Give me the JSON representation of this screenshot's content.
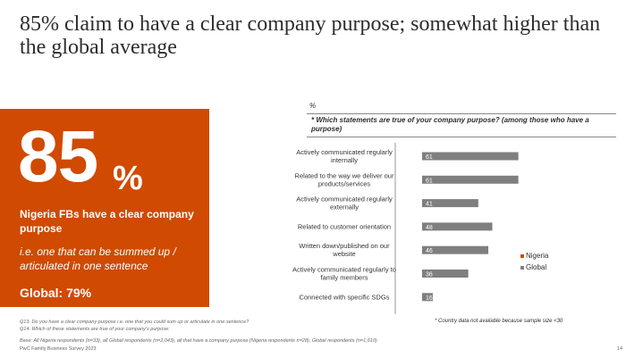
{
  "title": "85% claim to have a clear company purpose; somewhat higher than the global average",
  "panel": {
    "number": "85",
    "percent_sign": "%",
    "lead": "Nigeria FBs have a clear company purpose",
    "sub": "i.e. one that can be summed up / articulated in one sentence",
    "global": "Global: 79%"
  },
  "chart_unit": "%",
  "question": "* Which statements are true of your company purpose? (among those who have a purpose)",
  "legend": [
    {
      "label": "Nigeria",
      "color": "#d04a02"
    },
    {
      "label": "Global",
      "color": "#7f7f7f"
    }
  ],
  "chart_data": {
    "type": "bar",
    "orientation": "horizontal",
    "categories": [
      "Actively communicated regularly internally",
      "Related to the way we deliver our products/services",
      "Actively communicated regularly externally",
      "Related to customer orientation",
      "Written down/published on our website",
      "Actively communicated regularly to family members",
      "Connected with specific SDGs"
    ],
    "series": [
      {
        "name": "Global",
        "values": [
          61,
          61,
          41,
          48,
          46,
          36,
          16
        ]
      }
    ],
    "xlim": [
      0,
      100
    ]
  },
  "note": "* Country data not available because sample size <30",
  "footnotes": {
    "q13": "Q13. Do you have a clear company purpose i.e. one that you could sum up or articulate in one sentence?",
    "q14": "Q14. Which of these statements are true of your company's purpose:",
    "base": "Base: All Nigeria respondents (n=33), all Global respondents (n=2,043), all that have a company purpose (Nigeria respondents n=28), Global respondents (n=1,610)",
    "source": "PwC Family Business Survey 2023"
  },
  "page_number": "14"
}
